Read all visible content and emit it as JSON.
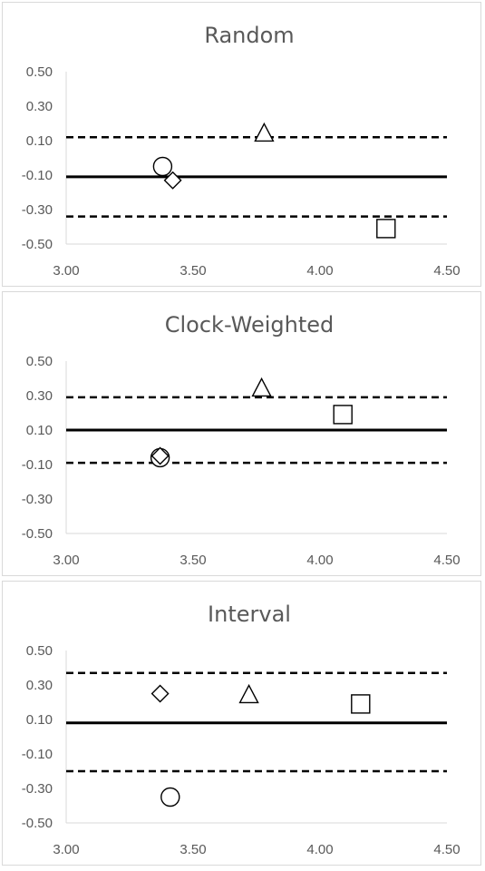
{
  "chart_data": [
    {
      "type": "scatter",
      "title": "Random",
      "xlim": [
        3.0,
        4.5
      ],
      "ylim": [
        -0.5,
        0.5
      ],
      "x_ticks": [
        "3.00",
        "3.50",
        "4.00",
        "4.50"
      ],
      "y_ticks": [
        "0.50",
        "0.30",
        "0.10",
        "-0.10",
        "-0.30",
        "-0.50"
      ],
      "reference_lines": [
        {
          "style": "dashed",
          "y": 0.12
        },
        {
          "style": "solid",
          "y": -0.11
        },
        {
          "style": "dashed",
          "y": -0.34
        }
      ],
      "points": [
        {
          "marker": "circle",
          "x": 3.38,
          "y": -0.05
        },
        {
          "marker": "diamond",
          "x": 3.42,
          "y": -0.13
        },
        {
          "marker": "triangle",
          "x": 3.78,
          "y": 0.14
        },
        {
          "marker": "square",
          "x": 4.26,
          "y": -0.41
        }
      ],
      "grid": false
    },
    {
      "type": "scatter",
      "title": "Clock-Weighted",
      "xlim": [
        3.0,
        4.5
      ],
      "ylim": [
        -0.5,
        0.5
      ],
      "x_ticks": [
        "3.00",
        "3.50",
        "4.00",
        "4.50"
      ],
      "y_ticks": [
        "0.50",
        "0.30",
        "0.10",
        "-0.10",
        "-0.30",
        "-0.50"
      ],
      "reference_lines": [
        {
          "style": "dashed",
          "y": 0.29
        },
        {
          "style": "solid",
          "y": 0.1
        },
        {
          "style": "dashed",
          "y": -0.09
        }
      ],
      "points": [
        {
          "marker": "circle",
          "x": 3.37,
          "y": -0.06
        },
        {
          "marker": "diamond",
          "x": 3.37,
          "y": -0.05
        },
        {
          "marker": "triangle",
          "x": 3.77,
          "y": 0.34
        },
        {
          "marker": "square",
          "x": 4.09,
          "y": 0.19
        }
      ],
      "grid": false
    },
    {
      "type": "scatter",
      "title": "Interval",
      "xlim": [
        3.0,
        4.5
      ],
      "ylim": [
        -0.5,
        0.5
      ],
      "x_ticks": [
        "3.00",
        "3.50",
        "4.00",
        "4.50"
      ],
      "y_ticks": [
        "0.50",
        "0.30",
        "0.10",
        "-0.10",
        "-0.30",
        "-0.50"
      ],
      "reference_lines": [
        {
          "style": "dashed",
          "y": 0.37
        },
        {
          "style": "solid",
          "y": 0.08
        },
        {
          "style": "dashed",
          "y": -0.2
        }
      ],
      "points": [
        {
          "marker": "diamond",
          "x": 3.37,
          "y": 0.25
        },
        {
          "marker": "triangle",
          "x": 3.72,
          "y": 0.24
        },
        {
          "marker": "square",
          "x": 4.16,
          "y": 0.19
        },
        {
          "marker": "circle",
          "x": 3.41,
          "y": -0.35
        }
      ],
      "grid": false
    }
  ]
}
